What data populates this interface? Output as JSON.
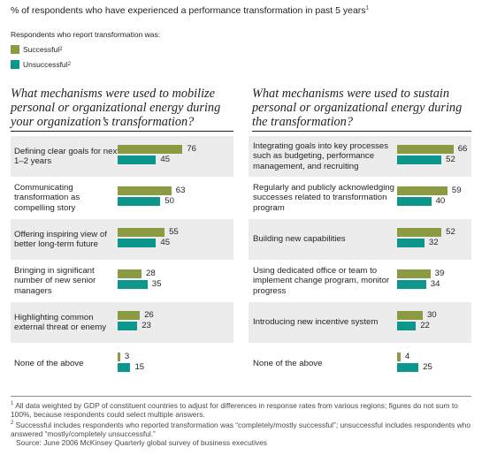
{
  "header": {
    "title": "% of respondents who have experienced a performance transformation in past 5 years",
    "title_note": "1",
    "legend_heading": "Respondents who report transformation was:",
    "legend": [
      {
        "label": "Successful",
        "note": "2",
        "color": "#8c9a41"
      },
      {
        "label": "Unsuccessful",
        "note": "2",
        "color": "#0d968c"
      }
    ]
  },
  "chart_data": [
    {
      "type": "bar",
      "title": "What mechanisms were used to mobilize personal or organizational energy during your organization’s transformation?",
      "categories": [
        "Defining clear goals for next 1–2 years",
        "Communicating transformation as compelling story",
        "Offering inspiring view of better long-term future",
        "Bringing in significant number of new senior managers",
        "Highlighting common external threat or enemy",
        "None of the above"
      ],
      "series": [
        {
          "name": "Successful",
          "values": [
            76,
            63,
            55,
            28,
            26,
            3
          ]
        },
        {
          "name": "Unsuccessful",
          "values": [
            45,
            50,
            45,
            35,
            23,
            15
          ]
        }
      ]
    },
    {
      "type": "bar",
      "title": "What mechanisms were used to sustain personal or organizational energy during the transformation?",
      "categories": [
        "Integrating goals into key processes such as budgeting, performance management, and recruiting",
        "Regularly and publicly acknowledging successes related to transformation program",
        "Building new capabilities",
        "Using dedicated office or team to implement change program, monitor progress",
        "Introducing new incentive system",
        "None of the above"
      ],
      "series": [
        {
          "name": "Successful",
          "values": [
            66,
            59,
            52,
            39,
            30,
            4
          ]
        },
        {
          "name": "Unsuccessful",
          "values": [
            52,
            40,
            32,
            34,
            22,
            25
          ]
        }
      ]
    }
  ],
  "colors": {
    "successful": "#8c9a41",
    "unsuccessful": "#0d968c",
    "row_shade": "#ececec"
  },
  "footnotes": {
    "note1_mark": "1",
    "note1": "All data weighted by GDP of constituent countries to adjust for differences in response rates from various regions; figures do not sum to 100%, because respondents could select multiple answers.",
    "note2_mark": "2",
    "note2": "Successful includes respondents who reported transformation was “completely/mostly successful”; unsuccessful includes respondents who answered “mostly/completely unsuccessful.”",
    "source": "Source: June 2006 McKinsey Quarterly global survey of business executives"
  }
}
